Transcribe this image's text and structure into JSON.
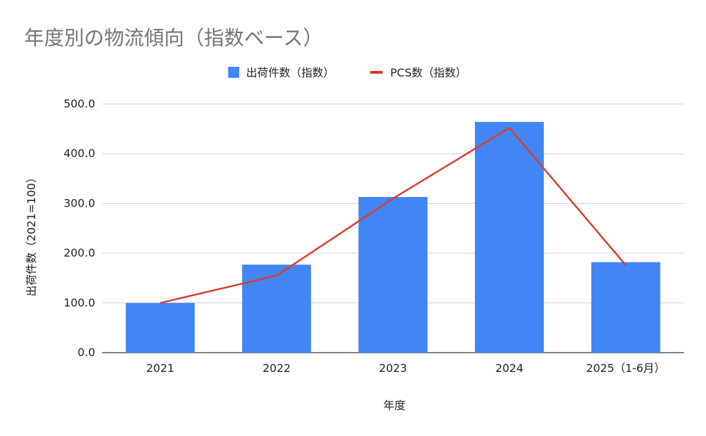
{
  "chart_data": {
    "type": "bar",
    "title": "年度別の物流傾向（指数ベース）",
    "xlabel": "年度",
    "ylabel": "出荷件数（2021=100）",
    "categories": [
      "2021",
      "2022",
      "2023",
      "2024",
      "2025（1-6月）"
    ],
    "ylim": [
      0,
      500
    ],
    "yticks": [
      "0.0",
      "100.0",
      "200.0",
      "300.0",
      "400.0",
      "500.0"
    ],
    "grid": true,
    "legend_position": "top",
    "series": [
      {
        "name": "出荷件数（指数）",
        "type": "bar",
        "color": "#4285f4",
        "values": [
          100,
          177,
          313,
          464,
          182
        ]
      },
      {
        "name": "PCS数（指数）",
        "type": "line",
        "color": "#db3b2b",
        "values": [
          100,
          155,
          310,
          452,
          176
        ]
      }
    ]
  }
}
